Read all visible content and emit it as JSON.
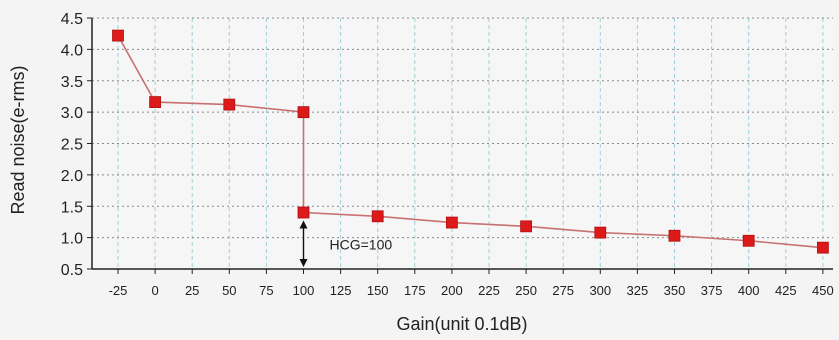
{
  "chart_data": {
    "type": "line",
    "xlabel": "Gain(unit 0.1dB)",
    "ylabel": "Read noise(e-rms)",
    "x_ticks": [
      "-25",
      "0",
      "25",
      "50",
      "75",
      "100",
      "125",
      "150",
      "175",
      "200",
      "225",
      "250",
      "275",
      "300",
      "325",
      "350",
      "375",
      "400",
      "425",
      "450"
    ],
    "y_ticks": [
      "0.5",
      "1.0",
      "1.5",
      "2.0",
      "2.5",
      "3.0",
      "3.5",
      "4.0",
      "4.5"
    ],
    "ylim": [
      0.5,
      4.5
    ],
    "grid": true,
    "series": [
      {
        "points": [
          {
            "x": "-25",
            "y": 4.22
          },
          {
            "x": "0",
            "y": 3.16
          },
          {
            "x": "50",
            "y": 3.12
          },
          {
            "x": "100",
            "y": 3.0
          },
          {
            "x": "100",
            "y": 1.4
          },
          {
            "x": "150",
            "y": 1.34
          },
          {
            "x": "200",
            "y": 1.24
          },
          {
            "x": "250",
            "y": 1.18
          },
          {
            "x": "300",
            "y": 1.08
          },
          {
            "x": "350",
            "y": 1.03
          },
          {
            "x": "400",
            "y": 0.95
          },
          {
            "x": "450",
            "y": 0.84
          }
        ]
      }
    ],
    "annotation": {
      "text": "HCG=100",
      "x": "100",
      "y_from": 1.4,
      "y_to": 0.5
    }
  },
  "colors": {
    "line": "#c87070",
    "marker": "#dd1a1a",
    "grid": "#9fd0dd",
    "grid_h": "#8a8a8a",
    "axis": "#222222",
    "text": "#222222"
  }
}
